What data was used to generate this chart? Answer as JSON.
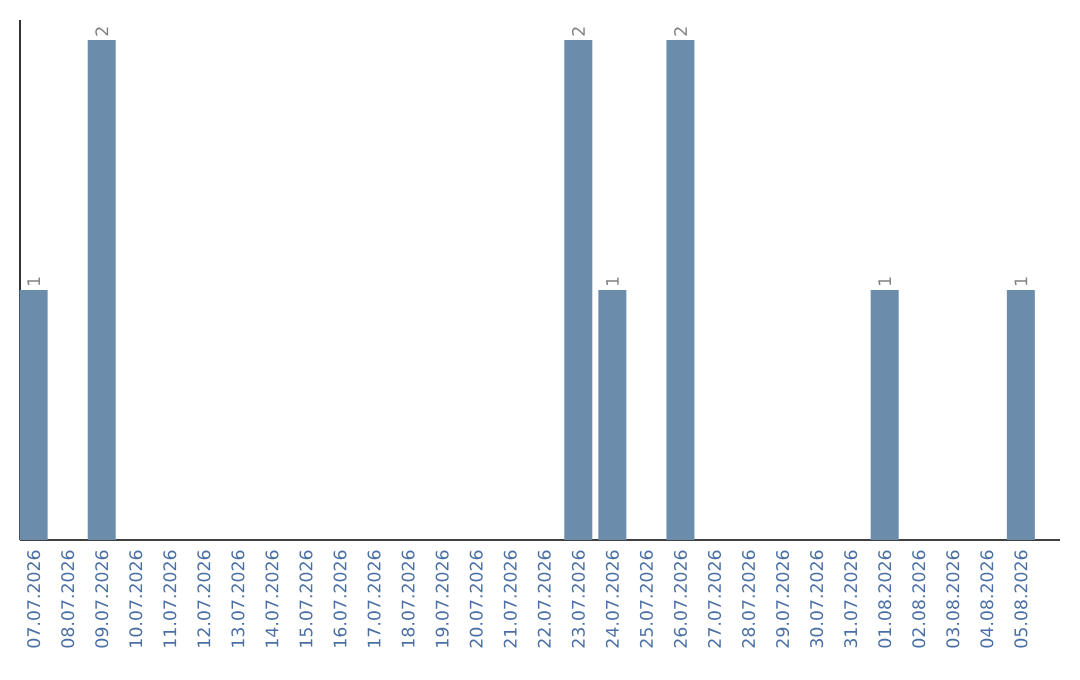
{
  "chart_data": {
    "type": "bar",
    "categories": [
      "07.07.2026",
      "08.07.2026",
      "09.07.2026",
      "10.07.2026",
      "11.07.2026",
      "12.07.2026",
      "13.07.2026",
      "14.07.2026",
      "15.07.2026",
      "16.07.2026",
      "17.07.2026",
      "18.07.2026",
      "19.07.2026",
      "20.07.2026",
      "21.07.2026",
      "22.07.2026",
      "23.07.2026",
      "24.07.2026",
      "25.07.2026",
      "26.07.2026",
      "27.07.2026",
      "28.07.2026",
      "29.07.2026",
      "30.07.2026",
      "31.07.2026",
      "01.08.2026",
      "02.08.2026",
      "03.08.2026",
      "04.08.2026",
      "05.08.2026"
    ],
    "values": [
      1,
      0,
      2,
      0,
      0,
      0,
      0,
      0,
      0,
      0,
      0,
      0,
      0,
      0,
      0,
      0,
      2,
      1,
      0,
      2,
      0,
      0,
      0,
      0,
      0,
      1,
      0,
      0,
      0,
      1
    ],
    "value_labels": [
      "1",
      null,
      "2",
      null,
      null,
      null,
      null,
      null,
      null,
      null,
      null,
      null,
      null,
      null,
      null,
      null,
      "2",
      "1",
      null,
      "2",
      null,
      null,
      null,
      null,
      null,
      "1",
      null,
      null,
      null,
      "1"
    ],
    "color": "#6b8caa",
    "ylim": [
      0,
      2.08
    ],
    "tick_labels": "x"
  }
}
